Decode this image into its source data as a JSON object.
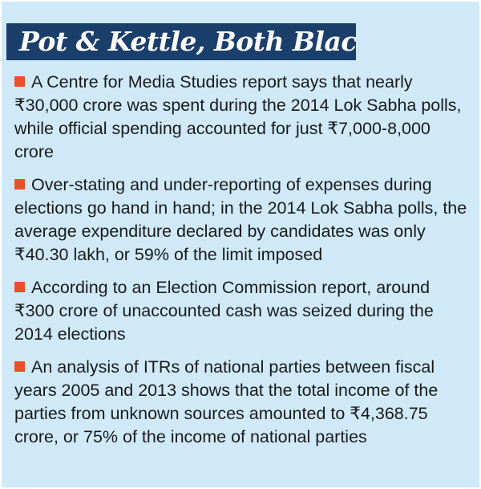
{
  "title": "Pot & Kettle, Both Black",
  "accent_color": "#e8502a",
  "title_bg_color": "#1b3f6b",
  "panel_bg_color": "#cfe9f8",
  "items": [
    {
      "text": "A Centre for Media Studies report says that nearly ₹30,000 crore was spent during the 2014 Lok Sabha polls, while official spending accounted for just ₹7,000-8,000 crore"
    },
    {
      "text": "Over-stating and under-reporting  of expenses during elections go hand in hand; in the 2014 Lok Sabha polls, the average expenditure declared by candidates was only ₹40.30 lakh, or 59% of the limit imposed"
    },
    {
      "text": "According to an Election Commission report, around ₹300 crore of unaccounted cash was seized during the 2014 elections"
    },
    {
      "text": "An analysis of ITRs of national parties between fiscal years 2005 and 2013 shows that the total income of the parties from unknown sources amounted to ₹4,368.75 crore, or 75% of the income of national parties"
    }
  ]
}
